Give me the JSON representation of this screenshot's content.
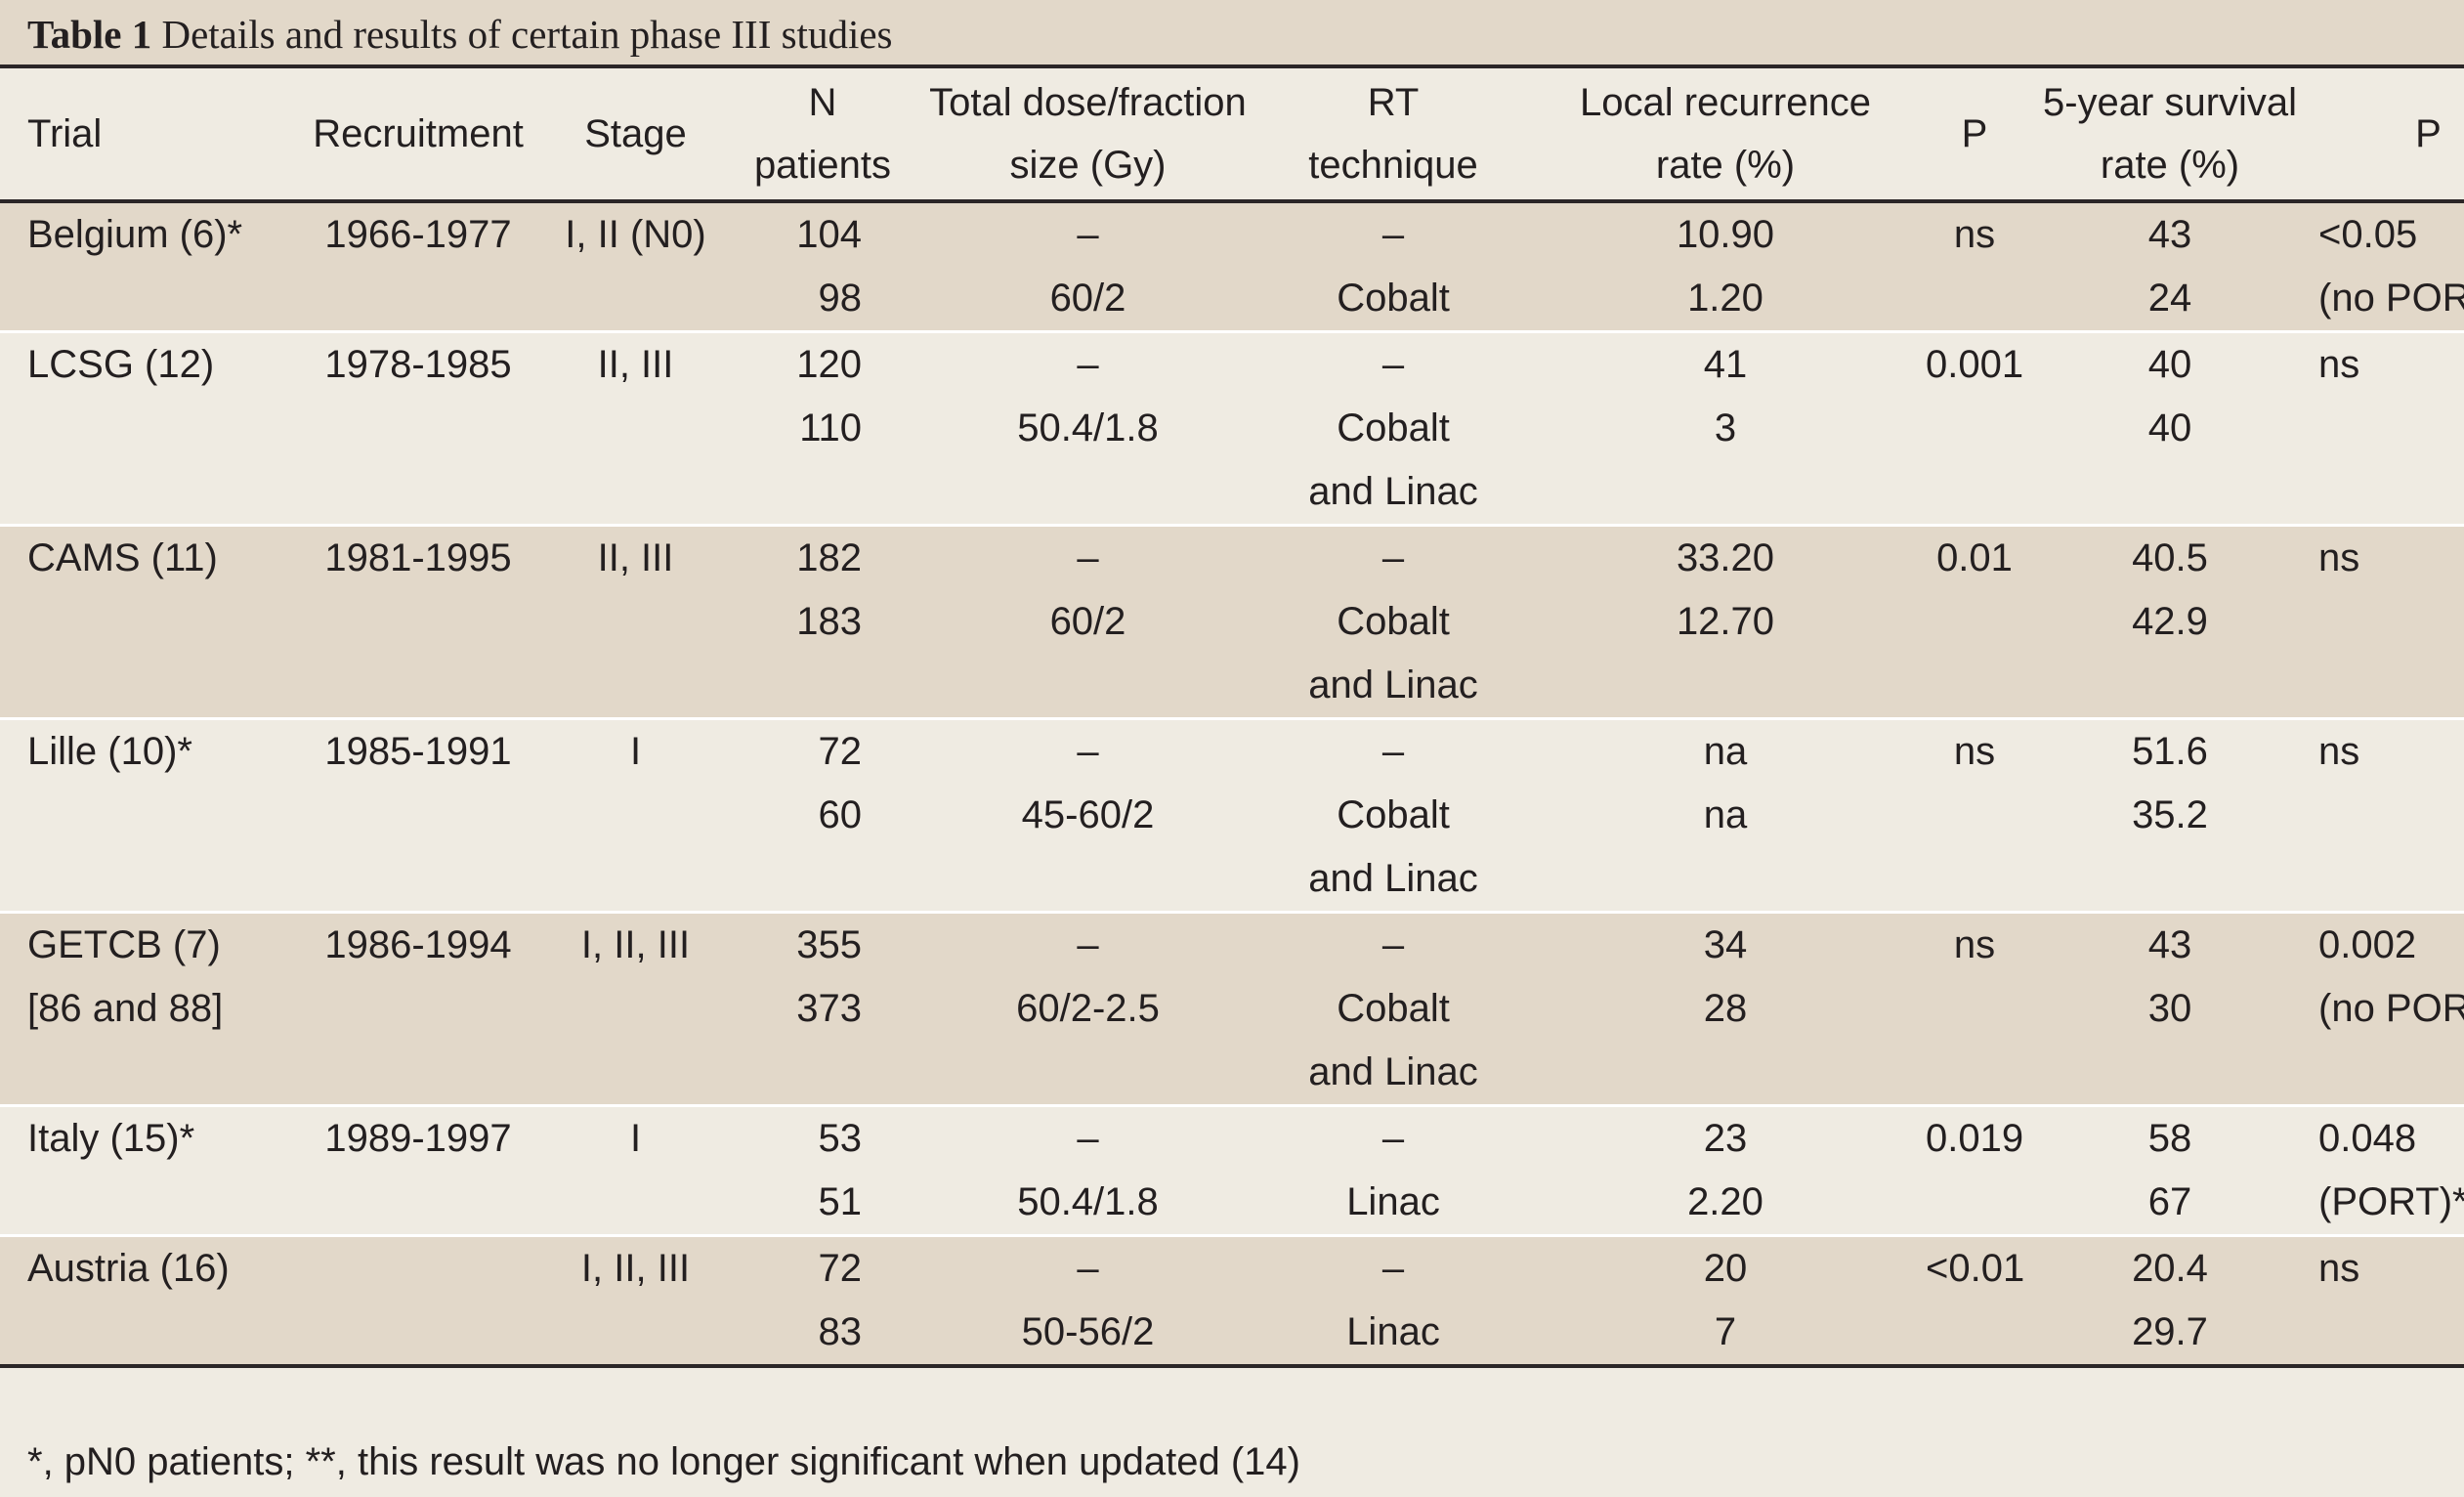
{
  "title": {
    "label": "Table 1",
    "text": "Details and results of certain phase III studies"
  },
  "headers": {
    "trial": [
      "Trial"
    ],
    "recruitment": [
      "Recruitment"
    ],
    "stage": [
      "Stage"
    ],
    "n": [
      "N",
      "patients"
    ],
    "dose": [
      "Total dose/fraction",
      "size (Gy)"
    ],
    "rt": [
      "RT",
      "technique"
    ],
    "lr": [
      "Local recurrence",
      "rate (%)"
    ],
    "p": [
      "P"
    ],
    "surv": [
      "5-year survival",
      "rate (%)"
    ],
    "p2": [
      "P"
    ]
  },
  "rows": [
    {
      "group": 0,
      "trial": "Belgium (6)*",
      "recruitment": "1966-1977",
      "stage": "I, II (N0)",
      "n": "104",
      "dose": "–",
      "rt": "–",
      "lr": "10.90",
      "p": "ns",
      "surv": "43",
      "p2": "<0.05"
    },
    {
      "group": 0,
      "trial": "",
      "recruitment": "",
      "stage": "",
      "n": "98",
      "dose": "60/2",
      "rt": "Cobalt",
      "lr": "1.20",
      "p": "",
      "surv": "24",
      "p2": "(no PORT)"
    },
    {
      "group": 1,
      "trial": "LCSG (12)",
      "recruitment": "1978-1985",
      "stage": "II, III",
      "n": "120",
      "dose": "–",
      "rt": "–",
      "lr": "41",
      "p": "0.001",
      "surv": "40",
      "p2": "ns"
    },
    {
      "group": 1,
      "trial": "",
      "recruitment": "",
      "stage": "",
      "n": "110",
      "dose": "50.4/1.8",
      "rt": "Cobalt",
      "lr": "3",
      "p": "",
      "surv": "40",
      "p2": ""
    },
    {
      "group": 1,
      "trial": "",
      "recruitment": "",
      "stage": "",
      "n": "",
      "dose": "",
      "rt": "and Linac",
      "lr": "",
      "p": "",
      "surv": "",
      "p2": ""
    },
    {
      "group": 2,
      "trial": "CAMS (11)",
      "recruitment": "1981-1995",
      "stage": "II, III",
      "n": "182",
      "dose": "–",
      "rt": "–",
      "lr": "33.20",
      "p": "0.01",
      "surv": "40.5",
      "p2": "ns"
    },
    {
      "group": 2,
      "trial": "",
      "recruitment": "",
      "stage": "",
      "n": "183",
      "dose": "60/2",
      "rt": "Cobalt",
      "lr": "12.70",
      "p": "",
      "surv": "42.9",
      "p2": ""
    },
    {
      "group": 2,
      "trial": "",
      "recruitment": "",
      "stage": "",
      "n": "",
      "dose": "",
      "rt": "and Linac",
      "lr": "",
      "p": "",
      "surv": "",
      "p2": ""
    },
    {
      "group": 3,
      "trial": "Lille (10)*",
      "recruitment": "1985-1991",
      "stage": "I",
      "n": "72",
      "dose": "–",
      "rt": "–",
      "lr": "na",
      "p": "ns",
      "surv": "51.6",
      "p2": "ns"
    },
    {
      "group": 3,
      "trial": "",
      "recruitment": "",
      "stage": "",
      "n": "60",
      "dose": "45-60/2",
      "rt": "Cobalt",
      "lr": "na",
      "p": "",
      "surv": "35.2",
      "p2": ""
    },
    {
      "group": 3,
      "trial": "",
      "recruitment": "",
      "stage": "",
      "n": "",
      "dose": "",
      "rt": "and Linac",
      "lr": "",
      "p": "",
      "surv": "",
      "p2": ""
    },
    {
      "group": 4,
      "trial": "GETCB (7)",
      "recruitment": "1986-1994",
      "stage": "I, II, III",
      "n": "355",
      "dose": "–",
      "rt": "–",
      "lr": "34",
      "p": "ns",
      "surv": "43",
      "p2": "0.002"
    },
    {
      "group": 4,
      "trial": "[86 and 88]",
      "recruitment": "",
      "stage": "",
      "n": "373",
      "dose": "60/2-2.5",
      "rt": "Cobalt",
      "lr": "28",
      "p": "",
      "surv": "30",
      "p2": "(no PORT)"
    },
    {
      "group": 4,
      "trial": "",
      "recruitment": "",
      "stage": "",
      "n": "",
      "dose": "",
      "rt": "and Linac",
      "lr": "",
      "p": "",
      "surv": "",
      "p2": ""
    },
    {
      "group": 5,
      "trial": "Italy (15)*",
      "recruitment": "1989-1997",
      "stage": "I",
      "n": "53",
      "dose": "–",
      "rt": "–",
      "lr": "23",
      "p": "0.019",
      "surv": "58",
      "p2": "0.048"
    },
    {
      "group": 5,
      "trial": "",
      "recruitment": "",
      "stage": "",
      "n": "51",
      "dose": "50.4/1.8",
      "rt": "Linac",
      "lr": "2.20",
      "p": "",
      "surv": "67",
      "p2": "(PORT)**"
    },
    {
      "group": 6,
      "trial": "Austria (16)",
      "recruitment": "",
      "stage": "I, II, III",
      "n": "72",
      "dose": "–",
      "rt": "–",
      "lr": "20",
      "p": "<0.01",
      "surv": "20.4",
      "p2": "ns"
    },
    {
      "group": 6,
      "trial": "",
      "recruitment": "",
      "stage": "",
      "n": "83",
      "dose": "50-56/2",
      "rt": "Linac",
      "lr": "7",
      "p": "",
      "surv": "29.7",
      "p2": ""
    }
  ],
  "footnote": "*, pN0 patients; **, this result was no longer significant when updated (14)",
  "colors": {
    "band_dark": "#e2d8c9",
    "band_light": "#efebe2",
    "rule": "#2b2627",
    "text": "#231f20"
  }
}
